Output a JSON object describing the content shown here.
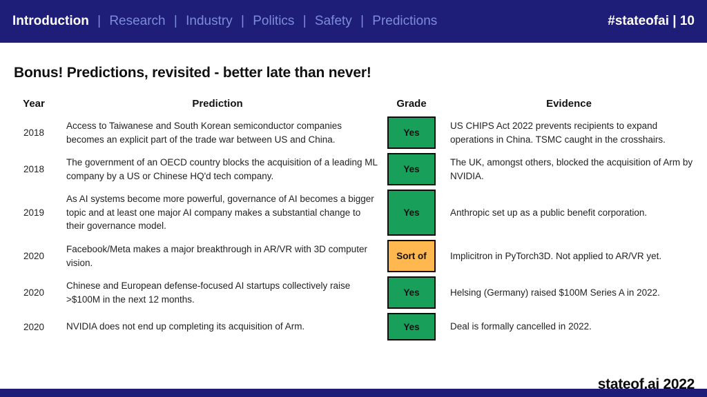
{
  "header": {
    "nav": [
      {
        "label": "Introduction"
      },
      {
        "label": "Research"
      },
      {
        "label": "Industry"
      },
      {
        "label": "Politics"
      },
      {
        "label": "Safety"
      },
      {
        "label": "Predictions"
      }
    ],
    "separator": "|",
    "badge": "#stateofai | 10"
  },
  "main": {
    "title": "Bonus! Predictions, revisited - better late than never!",
    "table": {
      "headers": {
        "year": "Year",
        "prediction": "Prediction",
        "grade": "Grade",
        "evidence": "Evidence"
      },
      "rows": [
        {
          "year": "2018",
          "prediction": "Access to Taiwanese and South Korean semiconductor companies becomes an explicit part of the trade war between US and China.",
          "grade": "Yes",
          "grade_color": "#18a05a",
          "evidence": "US CHIPS Act 2022 prevents recipients to expand operations in China. TSMC caught in the crosshairs."
        },
        {
          "year": "2018",
          "prediction": "The government of an OECD country blocks the acquisition of a leading ML company by a US or Chinese HQ'd tech company.",
          "grade": "Yes",
          "grade_color": "#18a05a",
          "evidence": "The UK, amongst others, blocked the acquisition of Arm by NVIDIA."
        },
        {
          "year": "2019",
          "prediction": "As AI systems become more powerful, governance of AI becomes a bigger topic and at least one major AI company makes a substantial change to their governance model.",
          "grade": "Yes",
          "grade_color": "#18a05a",
          "evidence": "Anthropic set up as a public benefit corporation."
        },
        {
          "year": "2020",
          "prediction": "Facebook/Meta makes a major breakthrough in AR/VR with 3D computer vision.",
          "grade": "Sort of",
          "grade_color": "#ffb750",
          "evidence": "Implicitron in PyTorch3D. Not applied to AR/VR yet."
        },
        {
          "year": "2020",
          "prediction": "Chinese and European defense-focused AI startups collectively raise >$100M in the next 12 months.",
          "grade": "Yes",
          "grade_color": "#18a05a",
          "evidence": "Helsing (Germany) raised $100M Series A in 2022."
        },
        {
          "year": "2020",
          "prediction": "NVIDIA does not end up completing its acquisition of Arm.",
          "grade": "Yes",
          "grade_color": "#18a05a",
          "evidence": "Deal is formally cancelled in 2022."
        }
      ]
    },
    "footer": "stateof.ai 2022"
  },
  "colors": {
    "header_bg": "#1e1e78",
    "nav_inactive": "#7d8cd8",
    "grade_yes": "#18a05a",
    "grade_sort_of": "#ffb750",
    "bottom_bar": "#1e1e78"
  }
}
